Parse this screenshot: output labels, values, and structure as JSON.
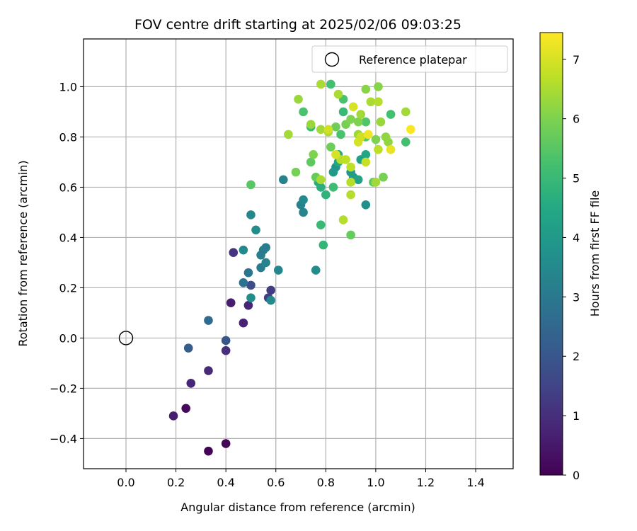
{
  "chart_data": {
    "type": "scatter",
    "title": "FOV centre drift starting at 2025/02/06 09:03:25",
    "xlabel": "Angular distance from reference (arcmin)",
    "ylabel": "Rotation from reference (arcmin)",
    "xlim": [
      -0.17,
      1.55
    ],
    "ylim": [
      -0.52,
      1.19
    ],
    "xticks": [
      0.0,
      0.2,
      0.4,
      0.6,
      0.8,
      1.0,
      1.2,
      1.4
    ],
    "xtick_labels": [
      "0.0",
      "0.2",
      "0.4",
      "0.6",
      "0.8",
      "1.0",
      "1.2",
      "1.4"
    ],
    "yticks": [
      -0.4,
      -0.2,
      0.0,
      0.2,
      0.4,
      0.6,
      0.8,
      1.0
    ],
    "ytick_labels": [
      "−0.4",
      "−0.2",
      "0.0",
      "0.2",
      "0.4",
      "0.6",
      "0.8",
      "1.0"
    ],
    "grid": true,
    "colormap": "viridis",
    "colorbar": {
      "label": "Hours from first FF file",
      "min": 0,
      "max": 7.45,
      "ticks": [
        0,
        1,
        2,
        3,
        4,
        5,
        6,
        7
      ],
      "tick_labels": [
        "0",
        "1",
        "2",
        "3",
        "4",
        "5",
        "6",
        "7"
      ]
    },
    "legend": {
      "placement": "upper right",
      "entries": [
        {
          "label": "Reference platepar",
          "marker": "open-circle"
        }
      ]
    },
    "reference_point": {
      "x": 0.0,
      "y": 0.0
    },
    "points": [
      [
        0.33,
        -0.45,
        0.05
      ],
      [
        0.4,
        -0.42,
        0.1
      ],
      [
        0.24,
        -0.28,
        0.2
      ],
      [
        0.19,
        -0.31,
        0.6
      ],
      [
        0.26,
        -0.18,
        0.8
      ],
      [
        0.33,
        -0.13,
        0.9
      ],
      [
        0.4,
        -0.05,
        1.0
      ],
      [
        0.47,
        0.06,
        0.7
      ],
      [
        0.42,
        0.14,
        0.6
      ],
      [
        0.49,
        0.13,
        0.8
      ],
      [
        0.43,
        0.34,
        1.1
      ],
      [
        0.58,
        0.19,
        1.3
      ],
      [
        0.57,
        0.16,
        1.4
      ],
      [
        0.5,
        0.21,
        1.7
      ],
      [
        0.4,
        -0.01,
        2.0
      ],
      [
        0.25,
        -0.04,
        2.2
      ],
      [
        0.33,
        0.07,
        2.6
      ],
      [
        0.47,
        0.22,
        2.8
      ],
      [
        0.49,
        0.26,
        2.9
      ],
      [
        0.54,
        0.28,
        3.1
      ],
      [
        0.54,
        0.33,
        3.2
      ],
      [
        0.55,
        0.35,
        3.0
      ],
      [
        0.56,
        0.36,
        3.1
      ],
      [
        0.56,
        0.3,
        3.3
      ],
      [
        0.61,
        0.27,
        3.4
      ],
      [
        0.58,
        0.15,
        3.5
      ],
      [
        0.5,
        0.16,
        3.6
      ],
      [
        0.47,
        0.35,
        3.5
      ],
      [
        0.52,
        0.43,
        3.6
      ],
      [
        0.5,
        0.49,
        3.4
      ],
      [
        0.63,
        0.63,
        3.3
      ],
      [
        0.7,
        0.53,
        3.3
      ],
      [
        0.71,
        0.5,
        3.4
      ],
      [
        0.71,
        0.55,
        3.5
      ],
      [
        0.76,
        0.27,
        3.6
      ],
      [
        0.96,
        0.53,
        3.7
      ],
      [
        0.84,
        0.68,
        3.8
      ],
      [
        0.83,
        0.66,
        4.0
      ],
      [
        0.9,
        0.66,
        4.0
      ],
      [
        0.91,
        0.64,
        4.1
      ],
      [
        0.94,
        0.71,
        4.2
      ],
      [
        0.93,
        0.63,
        4.3
      ],
      [
        0.96,
        0.73,
        4.4
      ],
      [
        0.85,
        0.7,
        4.4
      ],
      [
        0.85,
        0.73,
        4.5
      ],
      [
        0.77,
        0.62,
        4.6
      ],
      [
        0.78,
        0.6,
        4.7
      ],
      [
        0.8,
        0.57,
        4.8
      ],
      [
        0.79,
        0.37,
        4.9
      ],
      [
        0.78,
        0.45,
        5.0
      ],
      [
        0.83,
        0.6,
        5.1
      ],
      [
        0.74,
        0.84,
        5.1
      ],
      [
        0.87,
        0.9,
        5.0
      ],
      [
        0.82,
        1.01,
        5.2
      ],
      [
        0.87,
        0.95,
        5.3
      ],
      [
        0.86,
        0.81,
        5.3
      ],
      [
        0.96,
        0.86,
        5.4
      ],
      [
        0.96,
        0.8,
        5.5
      ],
      [
        0.99,
        0.62,
        5.6
      ],
      [
        1.06,
        0.89,
        5.2
      ],
      [
        1.12,
        0.78,
        5.2
      ],
      [
        0.71,
        0.9,
        5.3
      ],
      [
        0.5,
        0.61,
        5.5
      ],
      [
        0.9,
        0.41,
        5.7
      ],
      [
        0.76,
        0.64,
        5.7
      ],
      [
        0.74,
        0.7,
        5.6
      ],
      [
        0.82,
        0.76,
        5.8
      ],
      [
        0.84,
        0.84,
        5.8
      ],
      [
        0.88,
        0.85,
        5.9
      ],
      [
        0.9,
        0.87,
        6.0
      ],
      [
        0.93,
        0.86,
        6.0
      ],
      [
        0.96,
        0.99,
        6.1
      ],
      [
        1.0,
        0.79,
        6.0
      ],
      [
        1.03,
        0.64,
        5.9
      ],
      [
        1.04,
        0.8,
        6.2
      ],
      [
        1.05,
        0.78,
        6.2
      ],
      [
        1.02,
        0.86,
        6.3
      ],
      [
        1.0,
        0.62,
        6.4
      ],
      [
        0.98,
        0.94,
        6.5
      ],
      [
        1.01,
        1.0,
        6.1
      ],
      [
        1.12,
        0.9,
        6.4
      ],
      [
        0.93,
        0.81,
        6.3
      ],
      [
        0.94,
        0.89,
        6.4
      ],
      [
        0.9,
        0.57,
        6.6
      ],
      [
        0.9,
        0.62,
        6.6
      ],
      [
        0.87,
        0.47,
        6.6
      ],
      [
        0.85,
        0.97,
        6.5
      ],
      [
        0.78,
        1.01,
        6.5
      ],
      [
        0.69,
        0.95,
        6.3
      ],
      [
        0.65,
        0.81,
        6.4
      ],
      [
        0.78,
        0.83,
        6.4
      ],
      [
        0.74,
        0.85,
        6.3
      ],
      [
        0.75,
        0.73,
        6.0
      ],
      [
        0.68,
        0.66,
        5.9
      ],
      [
        0.81,
        0.82,
        6.5
      ],
      [
        0.78,
        0.63,
        6.5
      ],
      [
        0.86,
        0.71,
        6.6
      ],
      [
        0.88,
        0.71,
        6.7
      ],
      [
        0.96,
        0.7,
        6.8
      ],
      [
        0.9,
        0.68,
        6.7
      ],
      [
        0.81,
        0.83,
        6.9
      ],
      [
        0.84,
        0.73,
        7.0
      ],
      [
        0.91,
        0.92,
        7.0
      ],
      [
        0.93,
        0.78,
        7.0
      ],
      [
        0.94,
        0.8,
        6.9
      ],
      [
        1.01,
        0.94,
        6.6
      ],
      [
        1.01,
        0.75,
        6.7
      ],
      [
        0.97,
        0.81,
        7.3
      ],
      [
        1.06,
        0.75,
        7.2
      ],
      [
        1.14,
        0.83,
        7.4
      ]
    ]
  }
}
